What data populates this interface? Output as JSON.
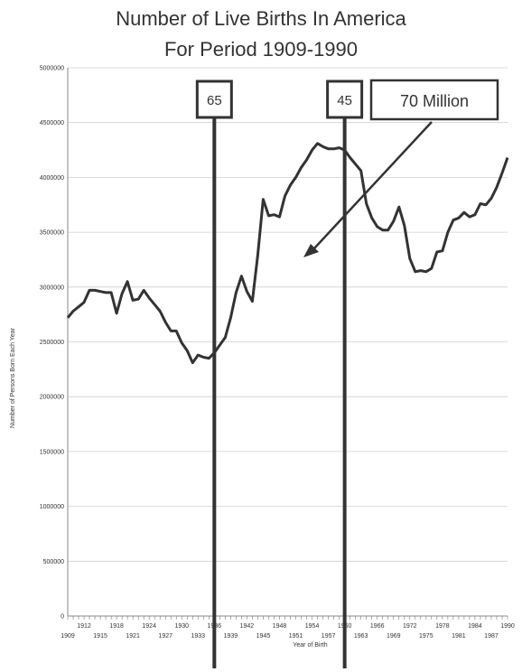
{
  "chart_data": {
    "type": "line",
    "title": "Number of Live Births In America",
    "subtitle": "For Period 1909-1990",
    "xlabel": "Year of Birth",
    "ylabel": "Number of Persons Born Each Year",
    "xlim": [
      1909,
      1990
    ],
    "ylim": [
      0,
      5000000
    ],
    "y_ticks": [
      0,
      500000,
      1000000,
      1500000,
      2000000,
      2500000,
      3000000,
      3500000,
      4000000,
      4500000,
      5000000
    ],
    "x_ticks_lower": [
      1909,
      1915,
      1921,
      1927,
      1933,
      1939,
      1945,
      1951,
      1957,
      1963,
      1969,
      1975,
      1981,
      1987
    ],
    "x_ticks_upper": [
      1912,
      1918,
      1924,
      1930,
      1936,
      1942,
      1948,
      1954,
      1960,
      1966,
      1972,
      1978,
      1984,
      1990
    ],
    "grid": "horizontal",
    "series": [
      {
        "x": [
          1909,
          1910,
          1911,
          1912,
          1913,
          1914,
          1915,
          1916,
          1917,
          1918,
          1919,
          1920,
          1921,
          1922,
          1923,
          1924,
          1925,
          1926,
          1927,
          1928,
          1929,
          1930,
          1931,
          1932,
          1933,
          1934,
          1935,
          1936,
          1937,
          1938,
          1939,
          1940,
          1941,
          1942,
          1943,
          1944,
          1945,
          1946,
          1947,
          1948,
          1949,
          1950,
          1951,
          1952,
          1953,
          1954,
          1955,
          1956,
          1957,
          1958,
          1959,
          1960,
          1961,
          1962,
          1963,
          1964,
          1965,
          1966,
          1967,
          1968,
          1969,
          1970,
          1971,
          1972,
          1973,
          1974,
          1975,
          1976,
          1977,
          1978,
          1979,
          1980,
          1981,
          1982,
          1983,
          1984,
          1985,
          1986,
          1987,
          1988,
          1989,
          1990
        ],
        "values": [
          2720000,
          2780000,
          2820000,
          2860000,
          2970000,
          2970000,
          2960000,
          2950000,
          2950000,
          2760000,
          2940000,
          3050000,
          2880000,
          2890000,
          2970000,
          2900000,
          2840000,
          2780000,
          2680000,
          2600000,
          2600000,
          2490000,
          2420000,
          2310000,
          2380000,
          2360000,
          2350000,
          2400000,
          2470000,
          2540000,
          2720000,
          2950000,
          3100000,
          2960000,
          2870000,
          3290000,
          3800000,
          3650000,
          3660000,
          3640000,
          3830000,
          3930000,
          4000000,
          4090000,
          4160000,
          4250000,
          4310000,
          4280000,
          4260000,
          4260000,
          4270000,
          4250000,
          4180000,
          4120000,
          4060000,
          3760000,
          3630000,
          3550000,
          3520000,
          3520000,
          3600000,
          3730000,
          3560000,
          3260000,
          3140000,
          3150000,
          3140000,
          3170000,
          3320000,
          3330000,
          3500000,
          3610000,
          3630000,
          3680000,
          3640000,
          3660000,
          3760000,
          3750000,
          3810000,
          3910000,
          4040000,
          4180000
        ]
      }
    ],
    "markers": [
      {
        "x": 1936,
        "label": "65"
      },
      {
        "x": 1960,
        "label": "45"
      }
    ],
    "annotation": {
      "text": "70 Million"
    }
  }
}
